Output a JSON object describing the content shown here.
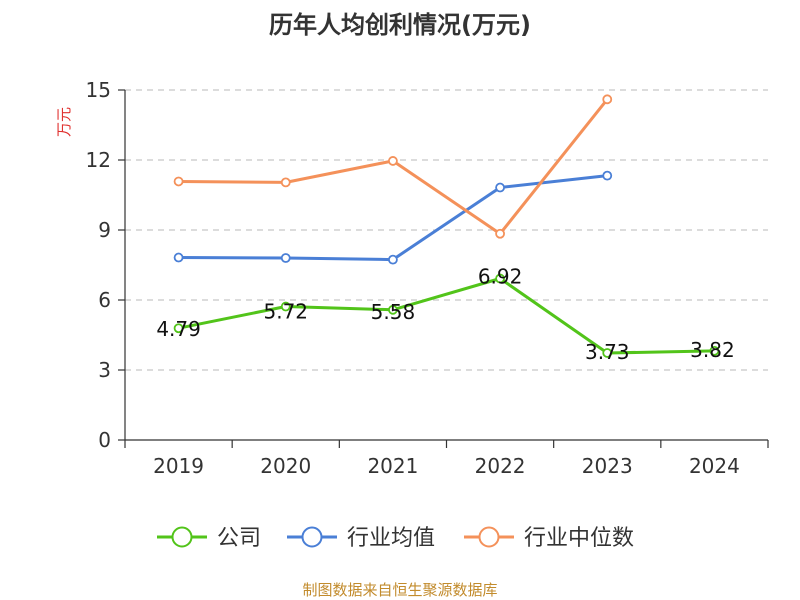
{
  "chart_data": {
    "type": "line",
    "title": "历年人均创利情况(万元)",
    "ylabel": "万元",
    "xlabel": "",
    "categories": [
      "2019",
      "2020",
      "2021",
      "2022",
      "2023",
      "2024"
    ],
    "ylim": [
      0,
      15
    ],
    "yticks": [
      0,
      3,
      6,
      9,
      12,
      15
    ],
    "grid": true,
    "legend_position": "bottom",
    "series": [
      {
        "name": "公司",
        "color": "#52c41a",
        "values": [
          4.79,
          5.72,
          5.58,
          6.92,
          3.73,
          3.82
        ],
        "labels": [
          "4.79",
          "5.72",
          "5.58",
          "6.92",
          "3.73",
          "3.82"
        ]
      },
      {
        "name": "行业均值",
        "color": "#4a7fd6",
        "values": [
          7.82,
          7.8,
          7.73,
          10.82,
          11.33,
          null
        ]
      },
      {
        "name": "行业中位数",
        "color": "#f4915a",
        "values": [
          11.08,
          11.04,
          11.96,
          8.84,
          14.6,
          null
        ]
      }
    ]
  },
  "source": "制图数据来自恒生聚源数据库"
}
